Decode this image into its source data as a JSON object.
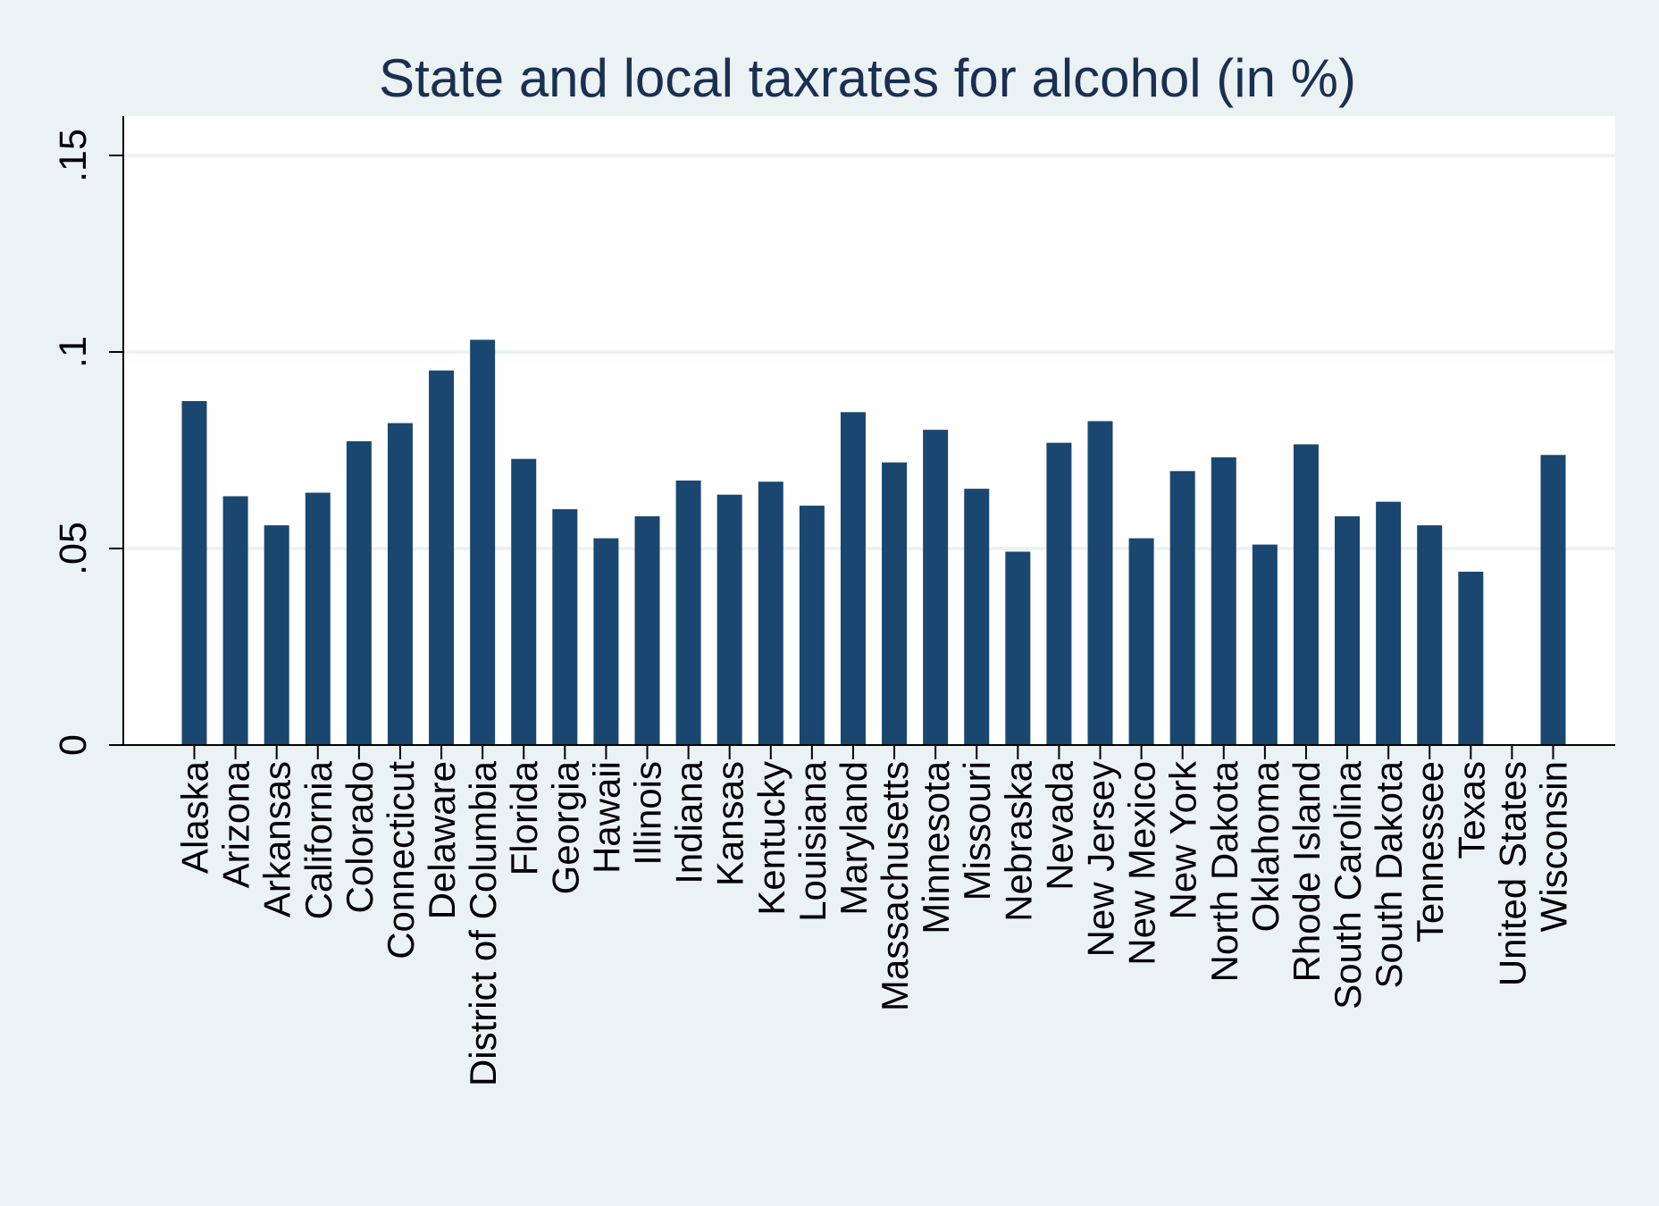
{
  "chart_data": {
    "type": "bar",
    "title": "State and local taxrates for alcohol (in %)",
    "xlabel": "",
    "ylabel": "",
    "ylim": [
      0,
      0.16
    ],
    "yticks": [
      {
        "value": 0,
        "label": "0"
      },
      {
        "value": 0.05,
        "label": ".05"
      },
      {
        "value": 0.1,
        "label": ".1"
      },
      {
        "value": 0.15,
        "label": ".15"
      }
    ],
    "grid": true,
    "categories": [
      "Alaska",
      "Arizona",
      "Arkansas",
      "California",
      "Colorado",
      "Connecticut",
      "Delaware",
      "District of Columbia",
      "Florida",
      "Georgia",
      "Hawaii",
      "Illinois",
      "Indiana",
      "Kansas",
      "Kentucky",
      "Louisiana",
      "Maryland",
      "Massachusetts",
      "Minnesota",
      "Missouri",
      "Nebraska",
      "Nevada",
      "New Jersey",
      "New Mexico",
      "New York",
      "North Dakota",
      "Oklahoma",
      "Rhode Island",
      "South Carolina",
      "South Dakota",
      "Tennessee",
      "Texas",
      "United States",
      "Wisconsin"
    ],
    "values": [
      0.0875,
      0.0633,
      0.0559,
      0.0642,
      0.0773,
      0.0819,
      0.0953,
      0.1031,
      0.0728,
      0.06,
      0.0526,
      0.0582,
      0.0673,
      0.0637,
      0.067,
      0.0609,
      0.0847,
      0.0719,
      0.0802,
      0.0652,
      0.0492,
      0.0769,
      0.0824,
      0.0526,
      0.0697,
      0.0732,
      0.051,
      0.0765,
      0.0582,
      0.0619,
      0.0559,
      0.0441,
      null,
      0.0738
    ]
  },
  "colors": {
    "bar": "#1a476f",
    "background": "#eaf2f3",
    "plot_area": "#ffffff",
    "grid": "#eaf2f3",
    "title": "#1a2f52",
    "axis": "#000000"
  }
}
